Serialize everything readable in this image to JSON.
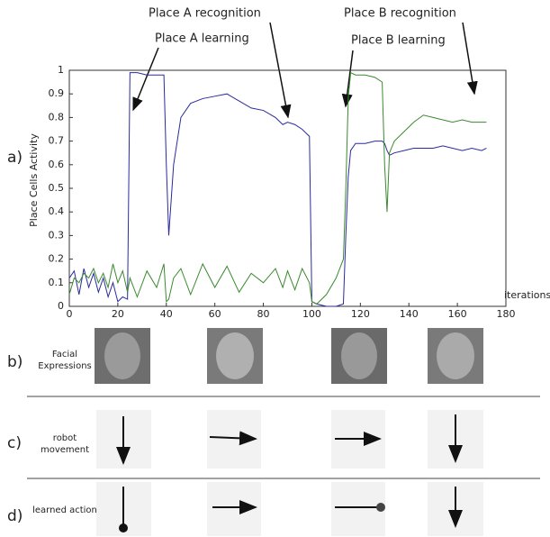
{
  "chart_data": {
    "type": "line",
    "y_label": "Place Cells Activity",
    "x_label": "iterations",
    "xlim": [
      0,
      180
    ],
    "ylim": [
      0,
      1
    ],
    "xticks": [
      0,
      20,
      40,
      60,
      80,
      100,
      120,
      140,
      160,
      180
    ],
    "yticks": [
      0,
      0.1,
      0.2,
      0.3,
      0.4,
      0.5,
      0.6,
      0.7,
      0.8,
      0.9,
      1
    ],
    "x": [
      0,
      2,
      4,
      6,
      8,
      10,
      12,
      14,
      16,
      18,
      20,
      22,
      24,
      25,
      28,
      32,
      36,
      39,
      40,
      41,
      43,
      46,
      50,
      55,
      60,
      65,
      70,
      75,
      80,
      85,
      88,
      90,
      93,
      96,
      99,
      100,
      102,
      106,
      110,
      113,
      114,
      115,
      116,
      118,
      122,
      126,
      129,
      130,
      131,
      132,
      134,
      138,
      142,
      146,
      150,
      154,
      158,
      162,
      166,
      170,
      172
    ],
    "series": [
      {
        "color": "#2a2a9e",
        "values": [
          0.12,
          0.15,
          0.05,
          0.16,
          0.08,
          0.14,
          0.06,
          0.12,
          0.04,
          0.1,
          0.02,
          0.04,
          0.03,
          0.99,
          0.99,
          0.98,
          0.98,
          0.98,
          0.6,
          0.3,
          0.6,
          0.8,
          0.86,
          0.88,
          0.89,
          0.9,
          0.87,
          0.84,
          0.83,
          0.8,
          0.77,
          0.78,
          0.77,
          0.75,
          0.72,
          0.02,
          0.01,
          0,
          0,
          0.01,
          0.3,
          0.55,
          0.66,
          0.69,
          0.69,
          0.7,
          0.7,
          0.69,
          0.66,
          0.64,
          0.65,
          0.66,
          0.67,
          0.67,
          0.67,
          0.68,
          0.67,
          0.66,
          0.67,
          0.66,
          0.67
        ]
      },
      {
        "color": "#3a8a2e",
        "values": [
          0.05,
          0.12,
          0.1,
          0.14,
          0.12,
          0.16,
          0.1,
          0.14,
          0.08,
          0.18,
          0.1,
          0.15,
          0.06,
          0.12,
          0.04,
          0.15,
          0.08,
          0.18,
          0.02,
          0.03,
          0.12,
          0.16,
          0.05,
          0.18,
          0.08,
          0.17,
          0.06,
          0.14,
          0.1,
          0.16,
          0.08,
          0.15,
          0.07,
          0.16,
          0.1,
          0.02,
          0.01,
          0.05,
          0.12,
          0.2,
          0.5,
          0.88,
          0.99,
          0.98,
          0.98,
          0.97,
          0.95,
          0.6,
          0.4,
          0.65,
          0.7,
          0.74,
          0.78,
          0.81,
          0.8,
          0.79,
          0.78,
          0.79,
          0.78,
          0.78,
          0.78
        ]
      }
    ],
    "annotations": [
      "Place A recognition",
      "Place A learning",
      "Place B recognition",
      "Place B learning"
    ]
  },
  "panel_labels": [
    "a)",
    "b)",
    "c)",
    "d)"
  ],
  "rows": [
    "Facial Expressions",
    "robot movement",
    "learned action"
  ]
}
